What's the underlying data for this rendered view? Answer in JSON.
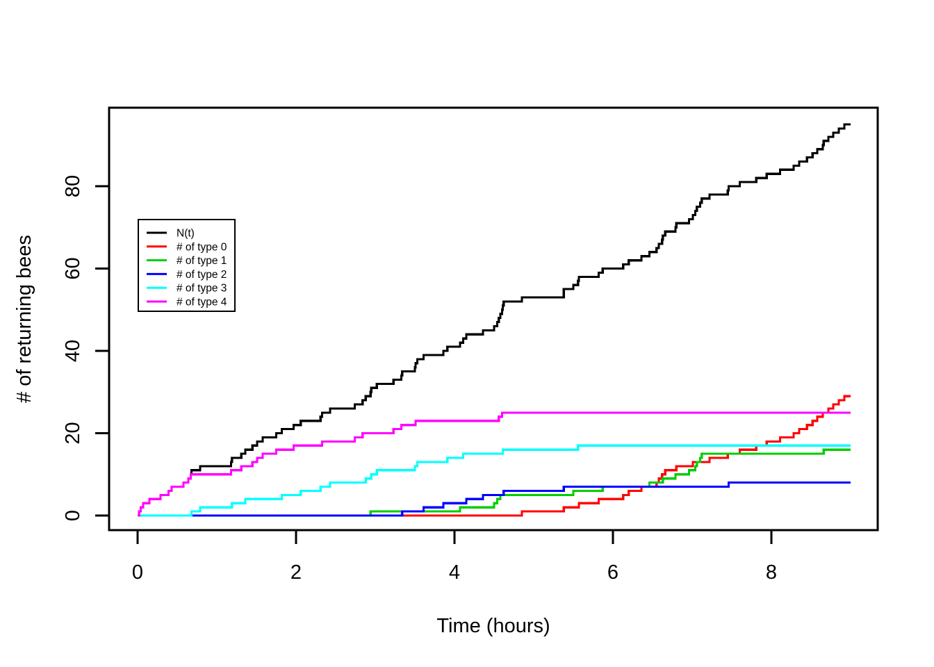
{
  "figure": {
    "background_color": "#ffffff",
    "foreground_color": "#000000"
  },
  "chart_data": {
    "type": "line",
    "subtype": "step-counting-process",
    "title": "",
    "xlabel": "Time (hours)",
    "ylabel": "# of returning bees",
    "x_ticks": [
      "0",
      "2",
      "4",
      "6",
      "8"
    ],
    "x_tick_values": [
      0,
      2,
      4,
      6,
      8
    ],
    "y_ticks": [
      "0",
      "20",
      "40",
      "60",
      "80"
    ],
    "y_tick_values": [
      0,
      20,
      40,
      60,
      80
    ],
    "xlim": [
      -0.36,
      9.36
    ],
    "ylim": [
      -3.6,
      99.1
    ],
    "t_start": 0,
    "t_end": 9.0,
    "grid": false,
    "legend_position": "upper-left",
    "series": [
      {
        "name": "N(t)",
        "color": "#000000",
        "role": "total-of-all-types",
        "start_value": 0,
        "final_value": 95
      },
      {
        "name": "# of type 0",
        "color": "#FF0000",
        "start_value": 0,
        "final_value": 29,
        "jump_times": [
          4.85,
          5.38,
          5.57,
          5.82,
          6.13,
          6.2,
          6.36,
          6.55,
          6.58,
          6.62,
          6.66,
          6.8,
          7.01,
          7.22,
          7.45,
          7.6,
          7.81,
          7.94,
          8.11,
          8.28,
          8.35,
          8.45,
          8.52,
          8.58,
          8.65,
          8.72,
          8.78,
          8.85,
          8.92
        ]
      },
      {
        "name": "# of type 1",
        "color": "#00CD00",
        "start_value": 0,
        "final_value": 16,
        "jump_times": [
          2.94,
          4.07,
          4.5,
          4.54,
          4.58,
          5.5,
          5.87,
          6.46,
          6.63,
          6.79,
          6.96,
          7.04,
          7.06,
          7.1,
          7.12,
          8.66
        ]
      },
      {
        "name": "# of type 2",
        "color": "#0000FF",
        "start_value": 0,
        "final_value": 8,
        "jump_times": [
          3.34,
          3.61,
          3.86,
          4.15,
          4.36,
          4.62,
          5.38,
          7.46
        ]
      },
      {
        "name": "# of type 3",
        "color": "#00FFFF",
        "start_value": 0,
        "final_value": 17,
        "jump_times": [
          0.68,
          0.79,
          1.19,
          1.36,
          1.82,
          2.06,
          2.31,
          2.43,
          2.88,
          2.95,
          3.02,
          3.5,
          3.53,
          3.91,
          4.11,
          4.61,
          5.56
        ]
      },
      {
        "name": "# of type 4",
        "color": "#FF00FF",
        "start_value": 0,
        "final_value": 25,
        "jump_times": [
          0.02,
          0.04,
          0.07,
          0.15,
          0.29,
          0.39,
          0.43,
          0.58,
          0.64,
          0.67,
          1.18,
          1.31,
          1.45,
          1.51,
          1.58,
          1.75,
          1.97,
          2.33,
          2.74,
          2.84,
          3.23,
          3.33,
          3.51,
          4.56,
          4.6
        ]
      }
    ],
    "final_counts": {
      "N": 95,
      "type0": 29,
      "type1": 16,
      "type2": 8,
      "type3": 17,
      "type4": 25
    }
  }
}
